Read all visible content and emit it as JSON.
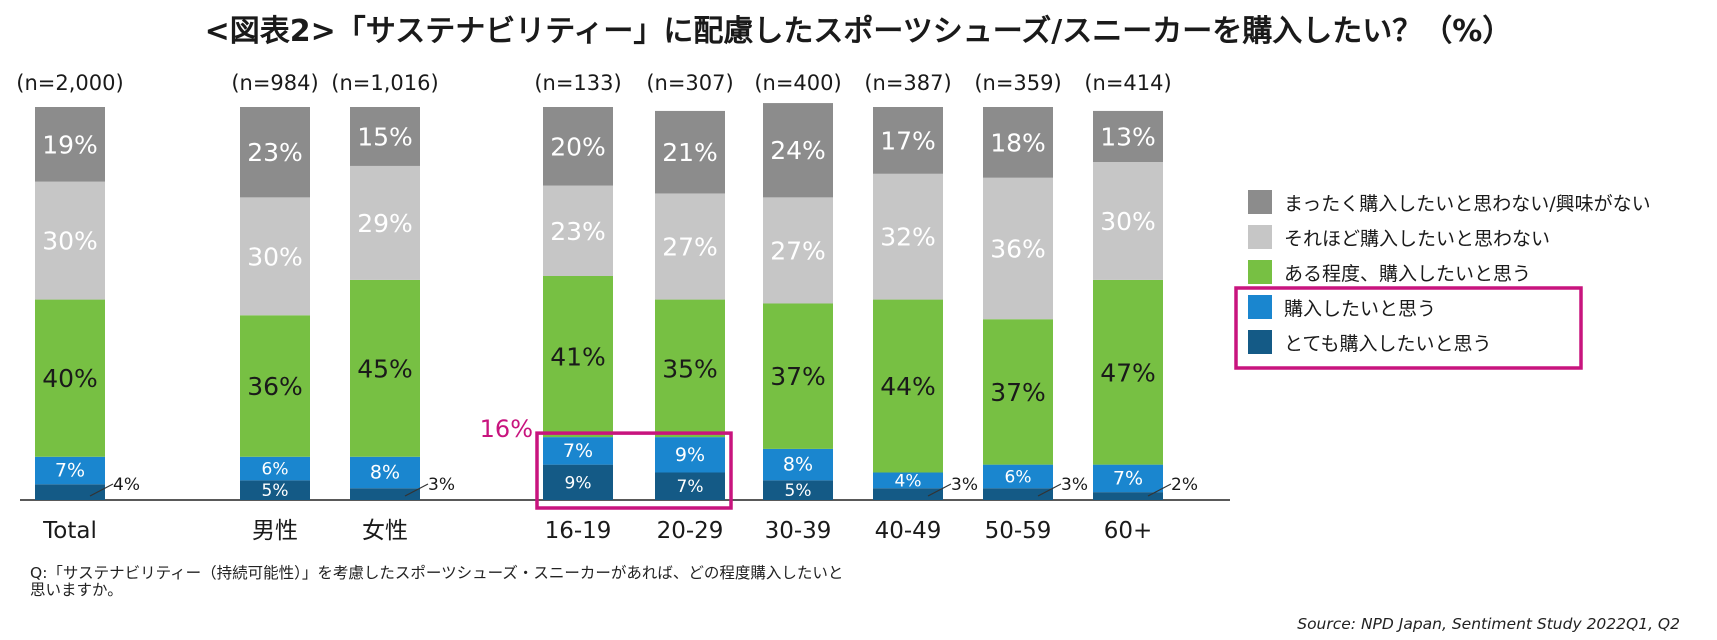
{
  "title": "<図表2>「サステナビリティー」に配慮したスポーツシューズ/スニーカーを購入したい？（%）",
  "question": "Q:「サステナビリティー（持続可能性）」を考慮したスポーツシューズ・スニーカーがあれば、どの程度購入したいと思いますか。",
  "source": "Source: NPD Japan, Sentiment Study 2022Q1, Q2",
  "highlight_label": "16%",
  "colors": {
    "not_at_all": "#8c8c8c",
    "not_really": "#c6c6c6",
    "somewhat": "#77c043",
    "want": "#1a86cf",
    "very_much": "#145a86",
    "highlight": "#c8147e"
  },
  "chart_data": {
    "type": "bar",
    "stacked": true,
    "categories": [
      "Total",
      "男性",
      "女性",
      "16-19",
      "20-29",
      "30-39",
      "40-49",
      "50-59",
      "60+"
    ],
    "n_labels": [
      "(n=2,000)",
      "(n=984)",
      "(n=1,016)",
      "(n=133)",
      "(n=307)",
      "(n=400)",
      "(n=387)",
      "(n=359)",
      "(n=414)"
    ],
    "series": [
      {
        "name": "とても購入したいと思う",
        "key": "very_much",
        "values": [
          4,
          5,
          3,
          9,
          7,
          5,
          3,
          3,
          2
        ]
      },
      {
        "name": "購入したいと思う",
        "key": "want",
        "values": [
          7,
          6,
          8,
          7,
          9,
          8,
          4,
          6,
          7
        ]
      },
      {
        "name": "ある程度、購入したいと思う",
        "key": "somewhat",
        "values": [
          40,
          36,
          45,
          41,
          35,
          37,
          44,
          37,
          47
        ]
      },
      {
        "name": "それほど購入したいと思わない",
        "key": "not_really",
        "values": [
          30,
          30,
          29,
          23,
          27,
          27,
          32,
          36,
          30
        ]
      },
      {
        "name": "まったく購入したいと思わない/興味がない",
        "key": "not_at_all",
        "values": [
          19,
          23,
          15,
          20,
          21,
          24,
          17,
          18,
          13
        ]
      }
    ],
    "legend_order": [
      "not_at_all",
      "not_really",
      "somewhat",
      "want",
      "very_much"
    ],
    "value_suffix": "%",
    "ylim": [
      0,
      100
    ],
    "legend_position": "right",
    "grid": false
  }
}
